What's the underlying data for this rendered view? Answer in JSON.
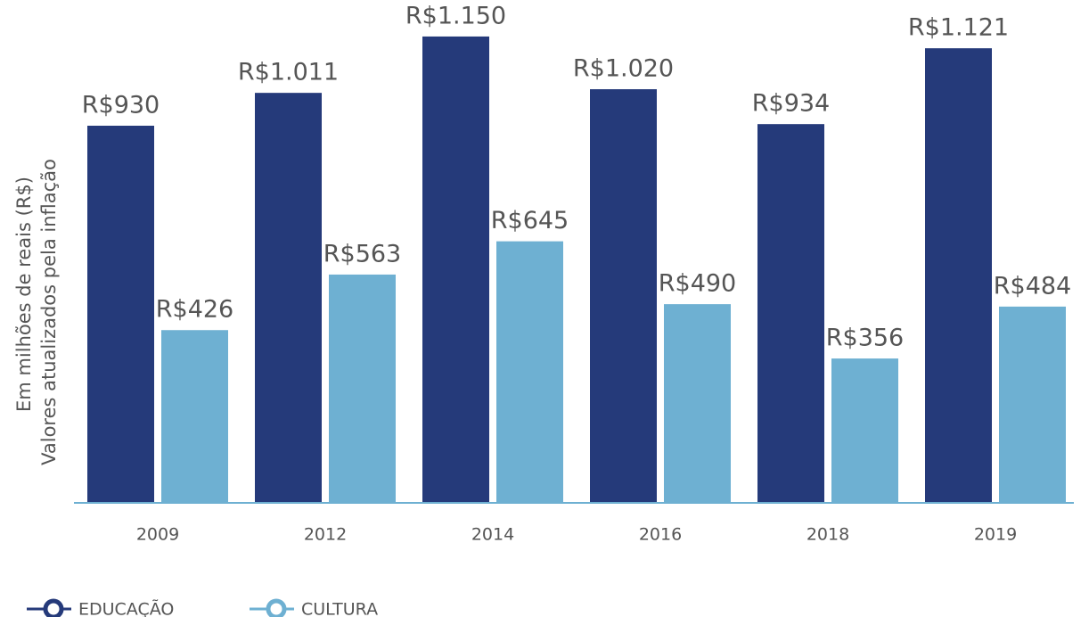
{
  "chart_data": {
    "type": "bar",
    "ylabel": [
      "Em milhões de reais (R$)",
      "Valores atualizados pela inflação"
    ],
    "categories": [
      "2009",
      "2012",
      "2014",
      "2016",
      "2018",
      "2019"
    ],
    "series": [
      {
        "name": "EDUCAÇÃO",
        "color": "#253a7a",
        "values": [
          930,
          1011,
          1150,
          1020,
          934,
          1121
        ],
        "value_labels": [
          "R$930",
          "R$1.011",
          "R$1.150",
          "R$1.020",
          "R$934",
          "R$1.121"
        ]
      },
      {
        "name": "CULTURA",
        "color": "#6eb0d2",
        "values": [
          426,
          563,
          645,
          490,
          356,
          484
        ],
        "value_labels": [
          "R$426",
          "R$563",
          "R$645",
          "R$490",
          "R$356",
          "R$484"
        ]
      }
    ],
    "ylim": [
      0,
      1240
    ],
    "legend": "bottom-left"
  }
}
